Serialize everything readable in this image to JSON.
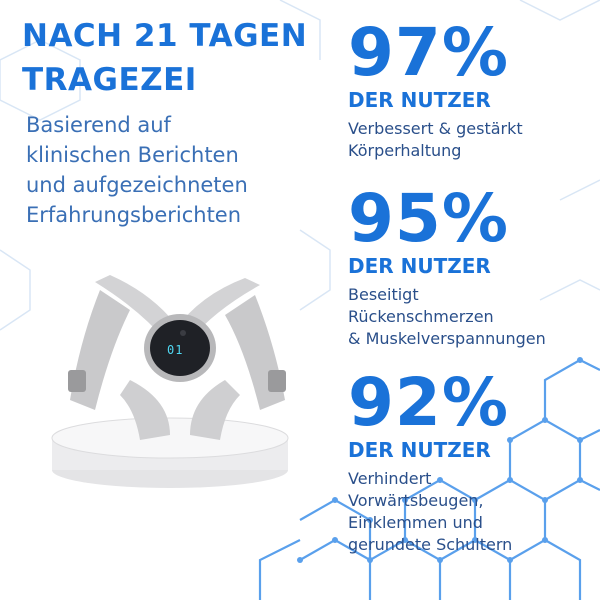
{
  "colors": {
    "accent": "#1a72d8",
    "body_text": "#3a6fb5",
    "hex_pattern": "#cfe0f4",
    "hex_pattern_strong": "#6aa8ef"
  },
  "headline": {
    "line1": "NACH 21 TAGEN",
    "line2": "TRAGEZEI"
  },
  "subtext": {
    "line1": "Basierend auf",
    "line2": "klinischen Berichten",
    "line3": "und aufgezeichneten",
    "line4": "Erfahrungsberichten"
  },
  "stats": [
    {
      "percent": "97%",
      "label": "DER NUTZER",
      "desc_lines": [
        "Verbessert & gestärkt",
        "Körperhaltung"
      ]
    },
    {
      "percent": "95%",
      "label": "DER NUTZER",
      "desc_lines": [
        "Beseitigt",
        "Rückenschmerzen",
        "& Muskelverspannungen"
      ]
    },
    {
      "percent": "92%",
      "label": "DER NUTZER",
      "desc_lines": [
        "Verhindert",
        "Vorwärtsbeugen,",
        "Einklemmen und",
        "gerundete Schultern"
      ]
    }
  ],
  "device": {
    "display": "01",
    "icon": "posture-corrector-device-icon"
  }
}
